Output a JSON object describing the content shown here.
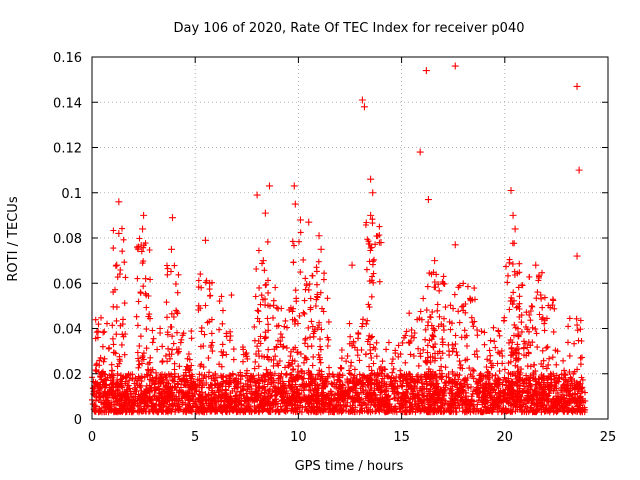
{
  "chart_data": {
    "type": "scatter",
    "title": "Day 106 of 2020, Rate Of TEC Index for receiver p040",
    "xlabel": "GPS time / hours",
    "ylabel": "ROTI / TECUs",
    "xlim": [
      0,
      25
    ],
    "ylim": [
      0,
      0.16
    ],
    "xticks": [
      0,
      5,
      10,
      15,
      20,
      25
    ],
    "yticks": [
      0,
      0.02,
      0.04,
      0.06,
      0.08,
      0.1,
      0.12,
      0.14,
      0.16
    ],
    "xtick_labels": [
      "0",
      "5",
      "10",
      "15",
      "20",
      "25"
    ],
    "ytick_labels": [
      "0",
      "0.02",
      "0.04",
      "0.06",
      "0.08",
      "0.1",
      "0.12",
      "0.14",
      "0.16"
    ],
    "grid": true,
    "marker": "plus",
    "color": "#ff0000",
    "background_band": {
      "x_start": 0,
      "x_end": 23.9,
      "y_low": 0.003,
      "y_high": 0.02,
      "points": 2600,
      "seed": 106
    },
    "peaks": [
      {
        "x": 1.3,
        "y": 0.096
      },
      {
        "x": 1.3,
        "y": 0.082
      },
      {
        "x": 1.2,
        "y": 0.068
      },
      {
        "x": 2.5,
        "y": 0.09
      },
      {
        "x": 2.45,
        "y": 0.084
      },
      {
        "x": 2.6,
        "y": 0.062
      },
      {
        "x": 3.9,
        "y": 0.089
      },
      {
        "x": 3.85,
        "y": 0.075
      },
      {
        "x": 5.5,
        "y": 0.079
      },
      {
        "x": 5.7,
        "y": 0.06
      },
      {
        "x": 8.0,
        "y": 0.099
      },
      {
        "x": 8.4,
        "y": 0.091
      },
      {
        "x": 8.6,
        "y": 0.103
      },
      {
        "x": 8.3,
        "y": 0.07
      },
      {
        "x": 9.8,
        "y": 0.103
      },
      {
        "x": 9.85,
        "y": 0.095
      },
      {
        "x": 10.1,
        "y": 0.088
      },
      {
        "x": 10.5,
        "y": 0.087
      },
      {
        "x": 11.0,
        "y": 0.081
      },
      {
        "x": 11.1,
        "y": 0.075
      },
      {
        "x": 12.6,
        "y": 0.068
      },
      {
        "x": 13.1,
        "y": 0.141
      },
      {
        "x": 13.2,
        "y": 0.138
      },
      {
        "x": 13.5,
        "y": 0.106
      },
      {
        "x": 13.6,
        "y": 0.1
      },
      {
        "x": 13.5,
        "y": 0.09
      },
      {
        "x": 14.0,
        "y": 0.078
      },
      {
        "x": 15.9,
        "y": 0.118
      },
      {
        "x": 16.2,
        "y": 0.154
      },
      {
        "x": 16.3,
        "y": 0.097
      },
      {
        "x": 16.6,
        "y": 0.07
      },
      {
        "x": 17.6,
        "y": 0.156
      },
      {
        "x": 17.6,
        "y": 0.077
      },
      {
        "x": 20.3,
        "y": 0.101
      },
      {
        "x": 20.4,
        "y": 0.09
      },
      {
        "x": 20.5,
        "y": 0.084
      },
      {
        "x": 21.5,
        "y": 0.068
      },
      {
        "x": 23.5,
        "y": 0.147
      },
      {
        "x": 23.6,
        "y": 0.11
      },
      {
        "x": 23.5,
        "y": 0.072
      }
    ],
    "bursts": [
      {
        "x": 0.5,
        "count": 40,
        "y_max": 0.045
      },
      {
        "x": 1.3,
        "count": 70,
        "y_max": 0.085
      },
      {
        "x": 2.5,
        "count": 70,
        "y_max": 0.08
      },
      {
        "x": 3.1,
        "count": 40,
        "y_max": 0.045
      },
      {
        "x": 3.9,
        "count": 60,
        "y_max": 0.07
      },
      {
        "x": 4.5,
        "count": 40,
        "y_max": 0.04
      },
      {
        "x": 5.5,
        "count": 60,
        "y_max": 0.065
      },
      {
        "x": 6.5,
        "count": 40,
        "y_max": 0.06
      },
      {
        "x": 7.2,
        "count": 30,
        "y_max": 0.035
      },
      {
        "x": 8.2,
        "count": 70,
        "y_max": 0.08
      },
      {
        "x": 8.7,
        "count": 50,
        "y_max": 0.06
      },
      {
        "x": 9.4,
        "count": 40,
        "y_max": 0.05
      },
      {
        "x": 10.0,
        "count": 70,
        "y_max": 0.09
      },
      {
        "x": 10.6,
        "count": 60,
        "y_max": 0.07
      },
      {
        "x": 11.2,
        "count": 50,
        "y_max": 0.07
      },
      {
        "x": 12.2,
        "count": 30,
        "y_max": 0.035
      },
      {
        "x": 12.8,
        "count": 40,
        "y_max": 0.045
      },
      {
        "x": 13.6,
        "count": 80,
        "y_max": 0.09
      },
      {
        "x": 14.3,
        "count": 30,
        "y_max": 0.035
      },
      {
        "x": 15.0,
        "count": 30,
        "y_max": 0.04
      },
      {
        "x": 15.7,
        "count": 40,
        "y_max": 0.05
      },
      {
        "x": 16.3,
        "count": 60,
        "y_max": 0.065
      },
      {
        "x": 16.8,
        "count": 60,
        "y_max": 0.065
      },
      {
        "x": 17.6,
        "count": 50,
        "y_max": 0.06
      },
      {
        "x": 18.3,
        "count": 40,
        "y_max": 0.06
      },
      {
        "x": 19.0,
        "count": 40,
        "y_max": 0.04
      },
      {
        "x": 19.7,
        "count": 40,
        "y_max": 0.045
      },
      {
        "x": 20.4,
        "count": 90,
        "y_max": 0.08
      },
      {
        "x": 20.9,
        "count": 60,
        "y_max": 0.06
      },
      {
        "x": 21.5,
        "count": 60,
        "y_max": 0.065
      },
      {
        "x": 22.1,
        "count": 40,
        "y_max": 0.055
      },
      {
        "x": 22.7,
        "count": 30,
        "y_max": 0.035
      },
      {
        "x": 23.4,
        "count": 50,
        "y_max": 0.045
      }
    ]
  }
}
